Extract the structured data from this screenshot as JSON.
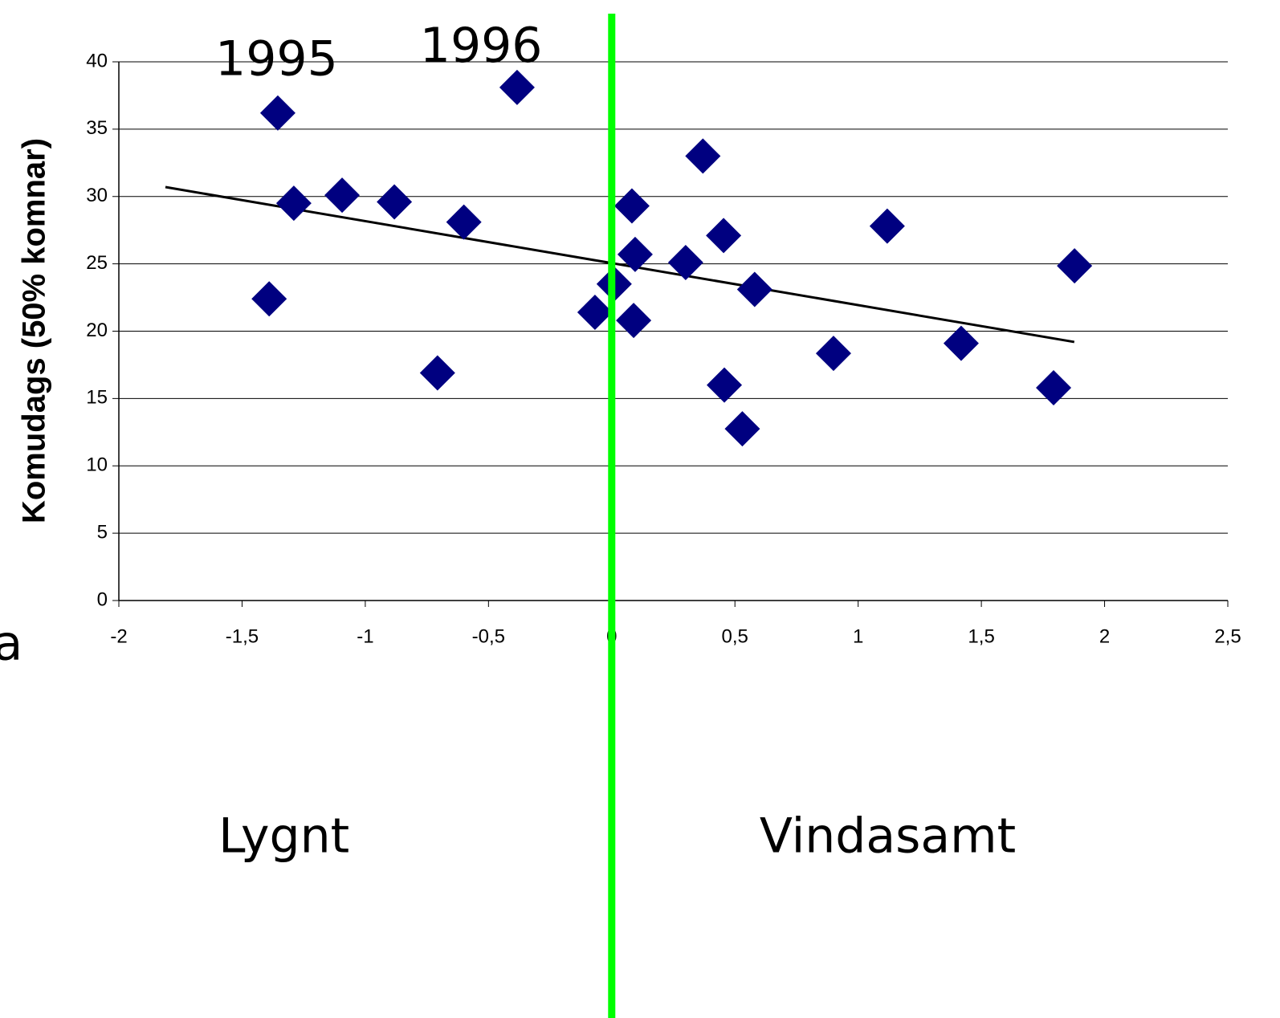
{
  "chart_data": {
    "type": "scatter",
    "y_label": "Komudags (50% komnar)",
    "x": [
      -1.39,
      -1.355,
      -1.29,
      -1.094,
      -0.882,
      -0.6,
      -0.707,
      -0.384,
      -0.068,
      0.01,
      0.082,
      0.095,
      0.089,
      0.3,
      0.37,
      0.454,
      0.457,
      0.53,
      0.58,
      0.9,
      1.118,
      1.418,
      1.793,
      1.878
    ],
    "values": [
      22.4,
      36.2,
      29.5,
      30.1,
      29.6,
      28.1,
      16.9,
      38.1,
      21.4,
      23.5,
      29.3,
      25.7,
      20.8,
      25.1,
      33.0,
      27.1,
      16.0,
      12.75,
      23.1,
      18.35,
      27.8,
      19.1,
      15.8,
      24.85
    ],
    "color": "#000080",
    "trendline": {
      "x": [
        -1.811,
        1.877
      ],
      "y": [
        30.7,
        19.2
      ],
      "color": "#000000"
    },
    "vertical_line": {
      "x": 0,
      "color": "#00ff00"
    },
    "xlim": [
      -2,
      2.5
    ],
    "xticks": [
      -2,
      {
        "value": -1.5,
        "label": "-1,5"
      },
      -1,
      {
        "value": -0.5,
        "label": "-0,5"
      },
      0,
      {
        "value": 0.5,
        "label": "0,5"
      },
      1,
      {
        "value": 1.5,
        "label": "1,5"
      },
      2,
      {
        "value": 2.5,
        "label": "2,5"
      }
    ],
    "ylim": [
      0,
      40
    ],
    "yticks": [
      0,
      5,
      10,
      15,
      20,
      25,
      30,
      35,
      40
    ],
    "grid": true,
    "annotations": [
      {
        "text": "1995",
        "x": -1.36,
        "y": 40
      },
      {
        "text": "1996",
        "x": -0.53,
        "y": 41
      },
      {
        "text": "Lygnt",
        "x": -1.33,
        "y": -17.7
      },
      {
        "text": "Vindasamt",
        "x": 1.12,
        "y": -17.7
      },
      {
        "text": "a",
        "x": -2.45,
        "y": -3.4
      }
    ]
  }
}
